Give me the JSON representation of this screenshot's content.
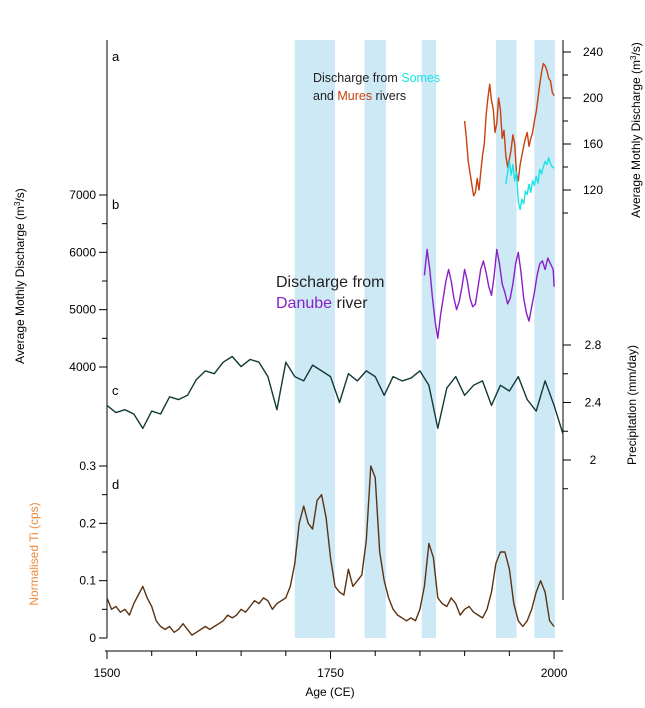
{
  "chart_data": {
    "type": "line",
    "xaxis": {
      "label": "Age (CE)",
      "range": [
        1500,
        2010
      ],
      "ticks": [
        1500,
        1750,
        2000
      ]
    },
    "shaded_intervals": [
      [
        1710,
        1755
      ],
      [
        1788,
        1812
      ],
      [
        1852,
        1868
      ],
      [
        1935,
        1958
      ],
      [
        1978,
        2001
      ]
    ],
    "colors": {
      "shade": "#cde9f6",
      "mures": "#c8410e",
      "somes": "#19e3e6",
      "danube": "#8a1fc8",
      "precip": "#123a36",
      "ti": "#5a3312",
      "ti_label": "#ee8a3c"
    },
    "panels": [
      {
        "letter": "a",
        "axis_side": "right",
        "ylabel": "Average Mothly Discharge (m³/s)",
        "ylabel_parts": [
          "Average Mothly Discharge (m",
          "3",
          "/s)"
        ],
        "ticks": [
          120,
          160,
          200,
          240
        ],
        "annotation_lines": [
          [
            {
              "text": "Discharge from ",
              "color": "#222222"
            },
            {
              "text": "Somes",
              "color": "#19e3e6"
            }
          ],
          [
            {
              "text": "and ",
              "color": "#222222"
            },
            {
              "text": "Mures",
              "color": "#c8410e"
            },
            {
              "text": " rivers",
              "color": "#222222"
            }
          ]
        ],
        "series": [
          {
            "color": "#c8410e",
            "x": [
              1900,
              1902,
              1904,
              1906,
              1908,
              1910,
              1912,
              1914,
              1916,
              1918,
              1920,
              1922,
              1924,
              1926,
              1928,
              1930,
              1932,
              1934,
              1936,
              1938,
              1940,
              1942,
              1944,
              1946,
              1948,
              1950,
              1952,
              1954,
              1956,
              1958,
              1960,
              1962,
              1964,
              1966,
              1968,
              1970,
              1972,
              1974,
              1976,
              1978,
              1980,
              1982,
              1984,
              1986,
              1988,
              1990,
              1992,
              1994,
              1996,
              1998,
              2000
            ],
            "y": [
              180,
              165,
              145,
              135,
              125,
              115,
              118,
              130,
              120,
              135,
              150,
              160,
              185,
              200,
              212,
              198,
              190,
              170,
              178,
              200,
              190,
              165,
              172,
              150,
              140,
              147,
              155,
              168,
              160,
              135,
              128,
              142,
              150,
              158,
              165,
              170,
              158,
              165,
              170,
              180,
              188,
              200,
              212,
              222,
              230,
              228,
              224,
              217,
              215,
              205,
              202
            ]
          },
          {
            "color": "#19e3e6",
            "x": [
              1946,
              1948,
              1950,
              1952,
              1954,
              1956,
              1958,
              1960,
              1962,
              1964,
              1966,
              1968,
              1970,
              1972,
              1974,
              1976,
              1978,
              1980,
              1982,
              1984,
              1986,
              1988,
              1990,
              1992,
              1994,
              1996,
              1998,
              2000
            ],
            "y": [
              125,
              135,
              145,
              133,
              142,
              128,
              136,
              110,
              103,
              112,
              108,
              119,
              116,
              125,
              118,
              128,
              124,
              132,
              126,
              138,
              134,
              140,
              145,
              142,
              148,
              143,
              140,
              139
            ]
          }
        ]
      },
      {
        "letter": "b",
        "axis_side": "left",
        "ylabel": "Average Mothly Discharge (m³/s)",
        "ylabel_parts": [
          "Average Mothly Discharge (m",
          "3",
          "/s)"
        ],
        "ticks": [
          4000,
          5000,
          6000,
          7000
        ],
        "annotation_lines": [
          [
            {
              "text": "Discharge from",
              "color": "#222222"
            }
          ],
          [
            {
              "text": "Danube",
              "color": "#8a1fc8"
            },
            {
              "text": " river",
              "color": "#222222"
            }
          ]
        ],
        "series": [
          {
            "color": "#8a1fc8",
            "x": [
              1855,
              1858,
              1861,
              1864,
              1867,
              1870,
              1873,
              1876,
              1879,
              1882,
              1885,
              1888,
              1891,
              1894,
              1897,
              1900,
              1903,
              1906,
              1909,
              1912,
              1915,
              1918,
              1921,
              1924,
              1927,
              1930,
              1933,
              1936,
              1939,
              1942,
              1945,
              1948,
              1951,
              1954,
              1957,
              1960,
              1963,
              1966,
              1969,
              1972,
              1975,
              1978,
              1981,
              1984,
              1987,
              1990,
              1993,
              1996,
              1999,
              2000
            ],
            "y": [
              5600,
              6050,
              5700,
              5200,
              4800,
              4500,
              4900,
              5200,
              5500,
              5700,
              5500,
              5200,
              5000,
              5150,
              5400,
              5700,
              5500,
              5200,
              5050,
              5100,
              5400,
              5700,
              5850,
              5650,
              5400,
              5250,
              5600,
              6050,
              5800,
              5450,
              5300,
              5100,
              5200,
              5450,
              5800,
              6000,
              5650,
              5200,
              4950,
              4800,
              5050,
              5300,
              5600,
              5800,
              5850,
              5700,
              5900,
              5800,
              5700,
              5400
            ]
          }
        ]
      },
      {
        "letter": "c",
        "axis_side": "right",
        "ylabel": "Precipitation (mm/day)",
        "ticks": [
          2,
          2.4,
          2.8
        ],
        "series": [
          {
            "color": "#123a36",
            "x": [
              1500,
              1510,
              1520,
              1530,
              1540,
              1550,
              1560,
              1570,
              1580,
              1590,
              1600,
              1610,
              1620,
              1630,
              1640,
              1650,
              1660,
              1670,
              1680,
              1690,
              1700,
              1710,
              1720,
              1730,
              1740,
              1750,
              1760,
              1770,
              1780,
              1790,
              1800,
              1810,
              1820,
              1830,
              1840,
              1850,
              1860,
              1870,
              1880,
              1890,
              1900,
              1910,
              1920,
              1930,
              1940,
              1950,
              1960,
              1970,
              1980,
              1990,
              2000,
              2010
            ],
            "y": [
              2.38,
              2.33,
              2.35,
              2.32,
              2.22,
              2.34,
              2.32,
              2.44,
              2.42,
              2.45,
              2.56,
              2.62,
              2.6,
              2.68,
              2.72,
              2.65,
              2.7,
              2.68,
              2.58,
              2.35,
              2.68,
              2.58,
              2.55,
              2.66,
              2.62,
              2.58,
              2.4,
              2.6,
              2.55,
              2.62,
              2.58,
              2.45,
              2.58,
              2.55,
              2.57,
              2.62,
              2.52,
              2.22,
              2.5,
              2.58,
              2.45,
              2.52,
              2.55,
              2.38,
              2.52,
              2.48,
              2.58,
              2.42,
              2.34,
              2.55,
              2.38,
              2.18
            ]
          }
        ]
      },
      {
        "letter": "d",
        "axis_side": "left",
        "ylabel": "Normalised Ti (cps)",
        "ticks": [
          0,
          0.1,
          0.2,
          0.3
        ],
        "series": [
          {
            "color": "#5a3312",
            "x": [
              1500,
              1505,
              1510,
              1515,
              1520,
              1525,
              1530,
              1535,
              1540,
              1545,
              1550,
              1555,
              1560,
              1565,
              1570,
              1575,
              1580,
              1585,
              1590,
              1595,
              1600,
              1605,
              1610,
              1615,
              1620,
              1625,
              1630,
              1635,
              1640,
              1645,
              1650,
              1655,
              1660,
              1665,
              1670,
              1675,
              1680,
              1685,
              1690,
              1695,
              1700,
              1705,
              1710,
              1715,
              1720,
              1725,
              1730,
              1735,
              1740,
              1745,
              1750,
              1755,
              1760,
              1765,
              1770,
              1775,
              1780,
              1785,
              1790,
              1795,
              1800,
              1805,
              1810,
              1815,
              1820,
              1825,
              1830,
              1835,
              1840,
              1845,
              1850,
              1855,
              1860,
              1865,
              1870,
              1875,
              1880,
              1885,
              1890,
              1895,
              1900,
              1905,
              1910,
              1915,
              1920,
              1925,
              1930,
              1935,
              1940,
              1945,
              1950,
              1955,
              1960,
              1965,
              1970,
              1975,
              1980,
              1985,
              1990,
              1995,
              2000
            ],
            "y": [
              0.07,
              0.05,
              0.055,
              0.045,
              0.05,
              0.04,
              0.06,
              0.075,
              0.09,
              0.07,
              0.055,
              0.03,
              0.02,
              0.015,
              0.02,
              0.01,
              0.015,
              0.025,
              0.015,
              0.005,
              0.01,
              0.015,
              0.02,
              0.015,
              0.02,
              0.025,
              0.03,
              0.04,
              0.035,
              0.04,
              0.05,
              0.045,
              0.055,
              0.065,
              0.06,
              0.07,
              0.065,
              0.05,
              0.06,
              0.065,
              0.07,
              0.09,
              0.13,
              0.2,
              0.23,
              0.2,
              0.19,
              0.24,
              0.25,
              0.21,
              0.14,
              0.09,
              0.08,
              0.075,
              0.12,
              0.09,
              0.1,
              0.11,
              0.17,
              0.3,
              0.28,
              0.15,
              0.1,
              0.07,
              0.05,
              0.04,
              0.035,
              0.03,
              0.035,
              0.03,
              0.05,
              0.09,
              0.165,
              0.14,
              0.07,
              0.06,
              0.055,
              0.07,
              0.06,
              0.04,
              0.05,
              0.055,
              0.045,
              0.04,
              0.035,
              0.05,
              0.08,
              0.13,
              0.15,
              0.15,
              0.12,
              0.06,
              0.03,
              0.02,
              0.03,
              0.05,
              0.08,
              0.1,
              0.08,
              0.03,
              0.02
            ]
          }
        ]
      }
    ]
  }
}
